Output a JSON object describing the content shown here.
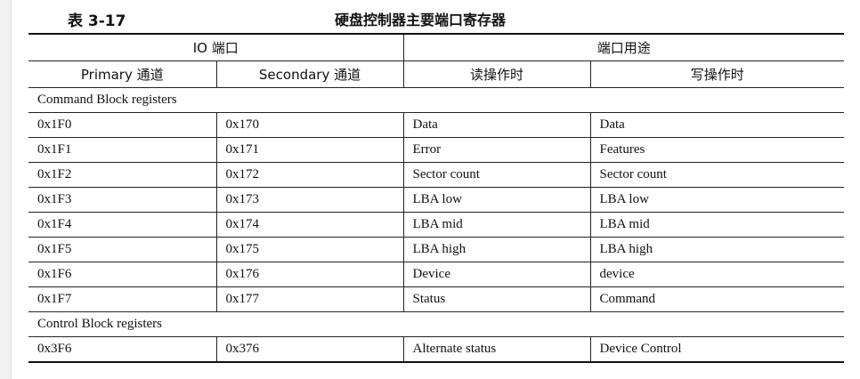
{
  "caption": {
    "number": "表 3-17",
    "title": "硬盘控制器主要端口寄存器"
  },
  "header": {
    "group_io": "IO 端口",
    "group_use": "端口用途",
    "columns": [
      "Primary 通道",
      "Secondary 通道",
      "读操作时",
      "写操作时"
    ]
  },
  "sections": [
    {
      "title": "Command Block registers",
      "rows": [
        [
          "0x1F0",
          "0x170",
          "Data",
          "Data"
        ],
        [
          "0x1F1",
          "0x171",
          "Error",
          "Features"
        ],
        [
          "0x1F2",
          "0x172",
          "Sector count",
          "Sector count"
        ],
        [
          "0x1F3",
          "0x173",
          "LBA low",
          "LBA low"
        ],
        [
          "0x1F4",
          "0x174",
          "LBA mid",
          "LBA mid"
        ],
        [
          "0x1F5",
          "0x175",
          "LBA high",
          "LBA high"
        ],
        [
          "0x1F6",
          "0x176",
          "Device",
          "device"
        ],
        [
          "0x1F7",
          "0x177",
          "Status",
          "Command"
        ]
      ]
    },
    {
      "title": "Control Block registers",
      "rows": [
        [
          "0x3F6",
          "0x376",
          "Alternate status",
          "Device Control"
        ]
      ]
    }
  ]
}
